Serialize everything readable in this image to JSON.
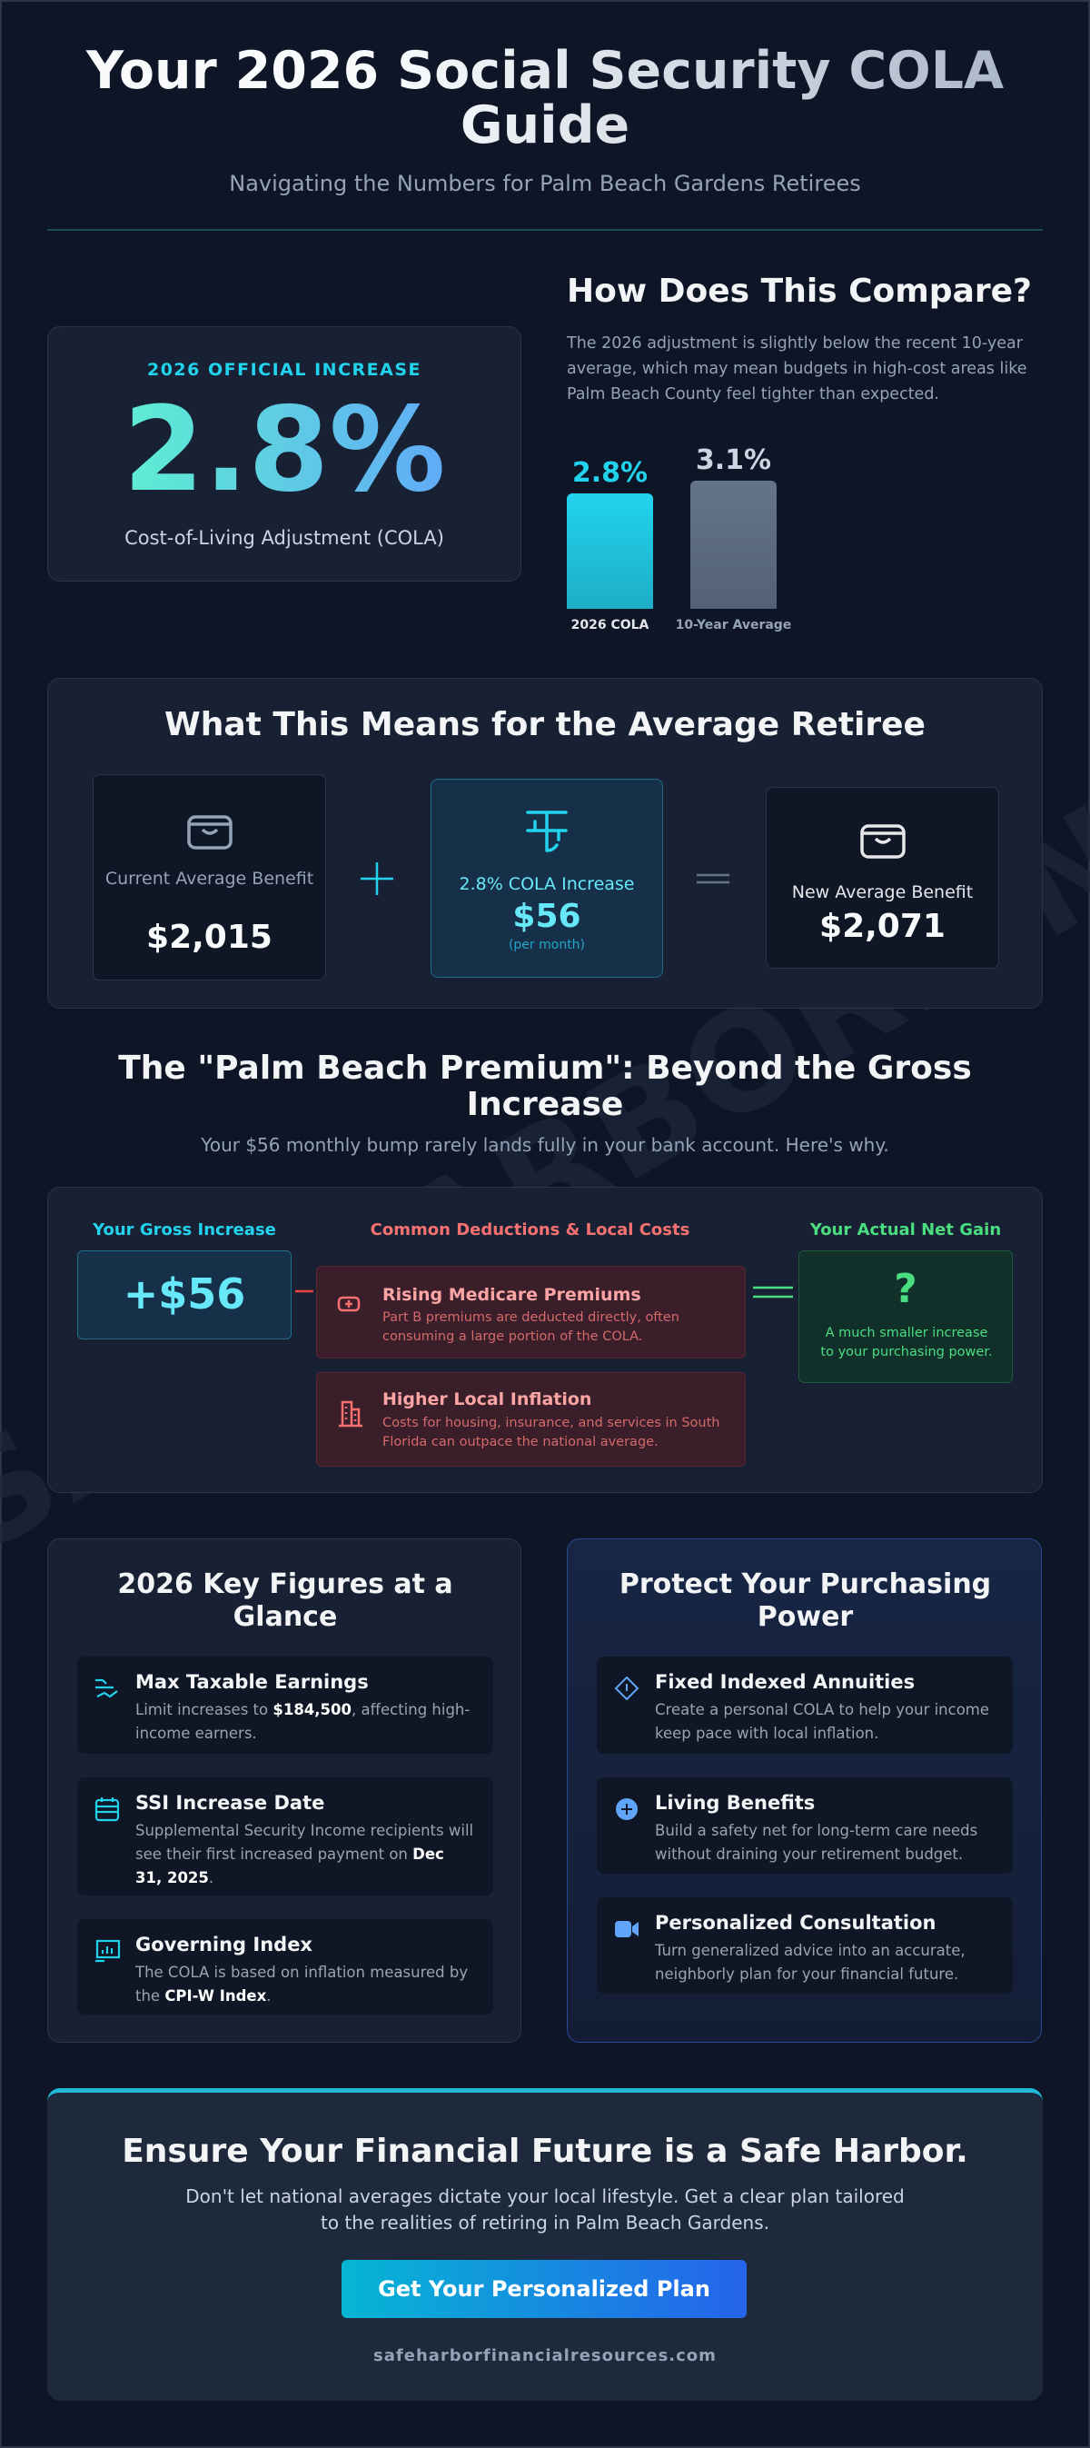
{
  "header": {
    "title": "Your 2026 Social Security COLA Guide",
    "subtitle": "Navigating the Numbers for Palm Beach Gardens Retirees"
  },
  "watermark": "SAFEHARBORFINANCIALRESOURCES",
  "official": {
    "label": "2026 OFFICIAL INCREASE",
    "value": "2.8%",
    "caption": "Cost-of-Living Adjustment (COLA)"
  },
  "compare": {
    "title": "How Does This Compare?",
    "text": "The 2026 adjustment is slightly below the recent 10-year average, which may mean budgets in high-cost areas like Palm Beach County feel tighter than expected."
  },
  "chart_data": {
    "type": "bar",
    "categories": [
      "2026 COLA",
      "10-Year Average"
    ],
    "values": [
      2.8,
      3.1
    ],
    "value_labels": [
      "2.8%",
      "3.1%"
    ],
    "colors": [
      "#22d3ee",
      "#64748b"
    ]
  },
  "average": {
    "title": "What This Means for the Average Retiree",
    "items": [
      {
        "label": "Current Average Benefit",
        "value": "$2,015"
      },
      {
        "label": "2.8% COLA Increase",
        "value": "$56",
        "note": "(per month)"
      },
      {
        "label": "New Average Benefit",
        "value": "$2,071"
      }
    ]
  },
  "premium": {
    "title": "The \"Palm Beach Premium\": Beyond the Gross Increase",
    "subtitle": "Your $56 monthly bump rarely lands fully in your bank account. Here's why.",
    "gross_label": "Your Gross Increase",
    "gross_value": "+$56",
    "deductions_label": "Common Deductions & Local Costs",
    "deductions": [
      {
        "title": "Rising Medicare Premiums",
        "text": "Part B premiums are deducted directly, often consuming a large portion of the COLA."
      },
      {
        "title": "Higher Local Inflation",
        "text": "Costs for housing, insurance, and services in South Florida can outpace the national average."
      }
    ],
    "net_label": "Your Actual Net Gain",
    "net_value": "?",
    "net_text": "A much smaller increase to your purchasing power."
  },
  "key_figures": {
    "title": "2026 Key Figures at a Glance",
    "items": [
      {
        "title": "Max Taxable Earnings",
        "text": [
          "Limit increases to ",
          "$184,500",
          ", affecting high-income earners."
        ]
      },
      {
        "title": "SSI Increase Date",
        "text": [
          "Supplemental Security Income recipients will see their first increased payment on ",
          "Dec 31, 2025",
          "."
        ]
      },
      {
        "title": "Governing Index",
        "text": [
          "The COLA is based on inflation measured by the ",
          "CPI-W Index",
          "."
        ]
      }
    ]
  },
  "protect": {
    "title": "Protect Your Purchasing Power",
    "items": [
      {
        "title": "Fixed Indexed Annuities",
        "text": "Create a personal COLA to help your income keep pace with local inflation."
      },
      {
        "title": "Living Benefits",
        "text": "Build a safety net for long-term care needs without draining your retirement budget."
      },
      {
        "title": "Personalized Consultation",
        "text": "Turn generalized advice into an accurate, neighborly plan for your financial future."
      }
    ]
  },
  "cta": {
    "title": "Ensure Your Financial Future is a Safe Harbor.",
    "text": "Don't let national averages dictate your local lifestyle. Get a clear plan tailored to the realities of retiring in Palm Beach Gardens.",
    "button": "Get Your Personalized Plan",
    "url": "safeharborfinancialresources.com"
  }
}
